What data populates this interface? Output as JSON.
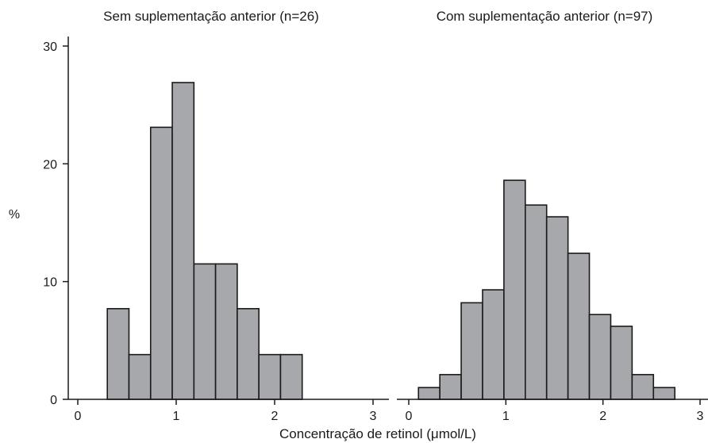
{
  "ylabel": "%",
  "xlabel": "Concentração de retinol (μmol/L)",
  "chart_data": [
    {
      "type": "bar",
      "title": "Sem suplementação anterior (n=26)",
      "bin_width": 0.22,
      "bin_starts": [
        0.3,
        0.52,
        0.74,
        0.96,
        1.18,
        1.4,
        1.62,
        1.84,
        2.06
      ],
      "values": [
        7.7,
        3.8,
        23.1,
        26.9,
        11.5,
        11.5,
        7.7,
        3.8,
        3.8
      ],
      "xticks": [
        "0",
        "1",
        "2",
        "3"
      ],
      "yticks": [
        "0",
        "10",
        "20",
        "30"
      ],
      "xlim": [
        0,
        3
      ],
      "ylim": [
        0,
        30
      ],
      "bar_color": "#a7a8ac",
      "edge_color": "#1a1a1a"
    },
    {
      "type": "bar",
      "title": "Com suplementação anterior (n=97)",
      "bin_width": 0.22,
      "bin_starts": [
        0.1,
        0.32,
        0.54,
        0.76,
        0.98,
        1.2,
        1.42,
        1.64,
        1.86,
        2.08,
        2.3,
        2.52
      ],
      "values": [
        1.0,
        2.1,
        8.2,
        9.3,
        18.6,
        16.5,
        15.5,
        12.4,
        7.2,
        6.2,
        2.1,
        1.0
      ],
      "xticks": [
        "0",
        "1",
        "2",
        "3"
      ],
      "xlim": [
        0,
        3
      ],
      "ylim": [
        0,
        30
      ],
      "bar_color": "#a7a8ac",
      "edge_color": "#1a1a1a"
    }
  ]
}
